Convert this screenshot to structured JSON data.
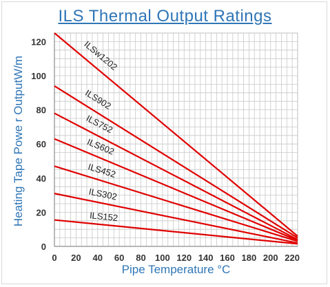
{
  "chart_data": {
    "type": "line",
    "title": "ILS Thermal Output Ratings",
    "xlabel": "Pipe Temperature °C",
    "ylabel": "Heating Tape Powe r OutputW/m",
    "xlim": [
      0,
      225
    ],
    "ylim": [
      0,
      125
    ],
    "x_ticks": [
      "0",
      "20",
      "40",
      "60",
      "80",
      "100",
      "120",
      "140",
      "160",
      "180",
      "200",
      "220"
    ],
    "y_ticks": [
      "0",
      "20",
      "40",
      "60",
      "80",
      "100",
      "120"
    ],
    "grid": true,
    "line_color": "#e00000",
    "series": [
      {
        "name": "ILSw1202",
        "x": [
          0,
          225
        ],
        "y": [
          125,
          6
        ]
      },
      {
        "name": "ILS902",
        "x": [
          0,
          225
        ],
        "y": [
          94,
          5
        ]
      },
      {
        "name": "ILS752",
        "x": [
          0,
          225
        ],
        "y": [
          78,
          4
        ]
      },
      {
        "name": "ILS602",
        "x": [
          0,
          225
        ],
        "y": [
          63,
          3.5
        ]
      },
      {
        "name": "ILS452",
        "x": [
          0,
          225
        ],
        "y": [
          47,
          3
        ]
      },
      {
        "name": "ILS302",
        "x": [
          0,
          225
        ],
        "y": [
          31,
          2
        ]
      },
      {
        "name": "ILS152",
        "x": [
          0,
          225
        ],
        "y": [
          15.5,
          1.5
        ]
      }
    ]
  }
}
